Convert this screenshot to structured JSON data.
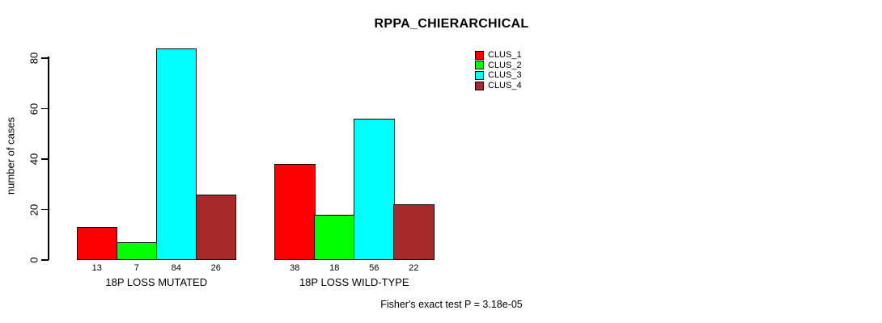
{
  "title": "RPPA_CHIERARCHICAL",
  "y_axis": {
    "label": "number of cases"
  },
  "footer": "Fisher's exact test P = 3.18e-05",
  "chart_data": {
    "type": "bar",
    "title": "RPPA_CHIERARCHICAL",
    "xlabel": "",
    "ylabel": "number of cases",
    "ylim": [
      0,
      80
    ],
    "yticks": [
      0,
      20,
      40,
      60,
      80
    ],
    "grid": false,
    "legend_position": "top-right",
    "bar_value_labels": true,
    "categories": [
      "18P LOSS MUTATED",
      "18P LOSS WILD-TYPE"
    ],
    "series": [
      {
        "name": "CLUS_1",
        "color": "#ff0000",
        "values": [
          13,
          38
        ]
      },
      {
        "name": "CLUS_2",
        "color": "#00ff00",
        "values": [
          7,
          18
        ]
      },
      {
        "name": "CLUS_3",
        "color": "#00ffff",
        "values": [
          84,
          56
        ]
      },
      {
        "name": "CLUS_4",
        "color": "#a52a2a",
        "values": [
          26,
          22
        ]
      }
    ],
    "annotation": "Fisher's exact test P = 3.18e-05"
  }
}
